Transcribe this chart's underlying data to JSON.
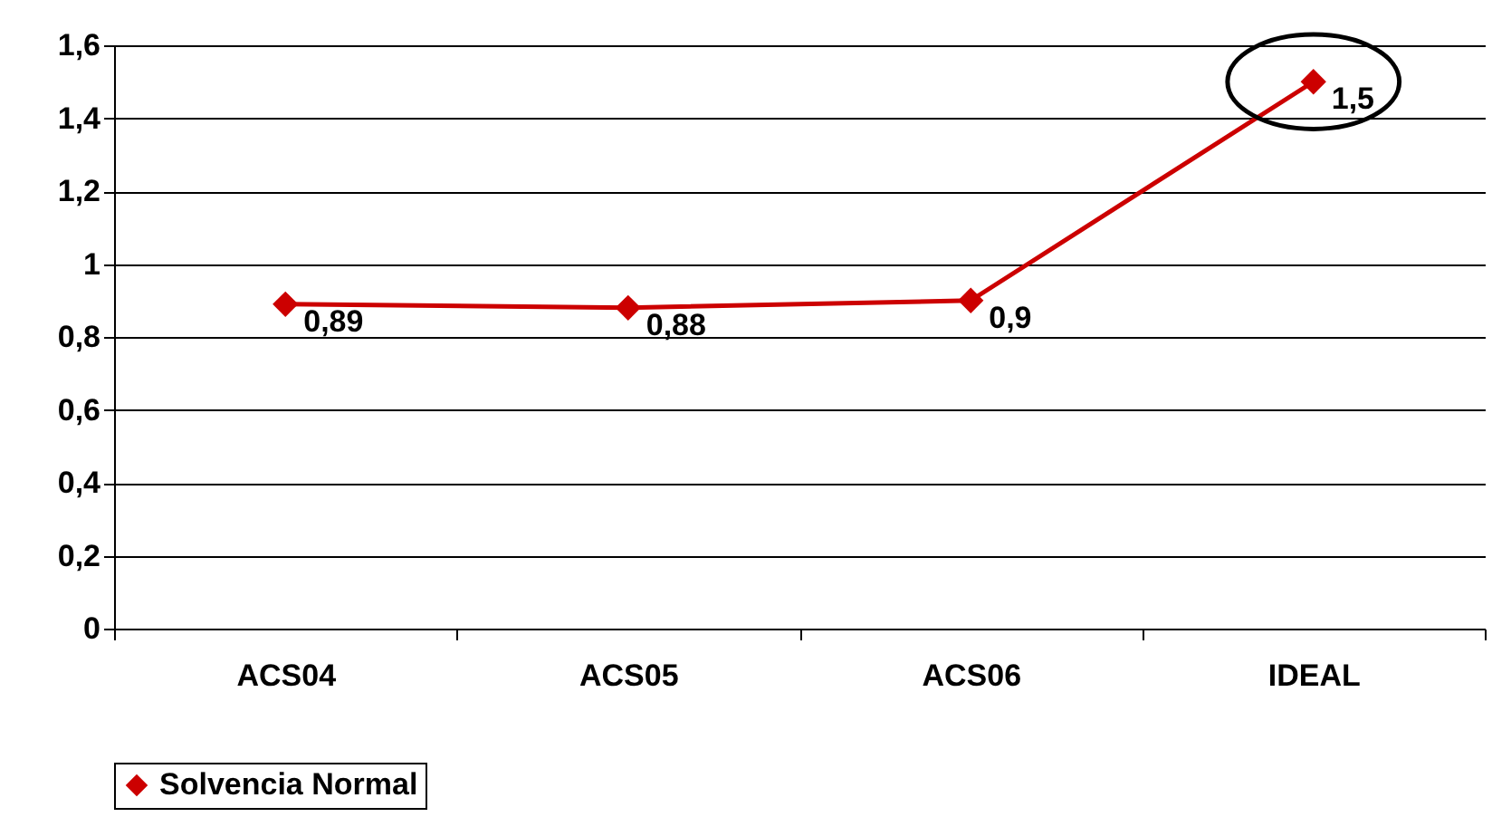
{
  "chart_data": {
    "type": "line",
    "categories": [
      "ACS04",
      "ACS05",
      "ACS06",
      "IDEAL"
    ],
    "series": [
      {
        "name": "Solvencia Normal",
        "color": "#cc0000",
        "values": [
          0.89,
          0.88,
          0.9,
          1.5
        ],
        "value_labels": [
          "0,89",
          "0,88",
          "0,9",
          "1,5"
        ]
      }
    ],
    "ylim": [
      0,
      1.6
    ],
    "yticks": [
      0,
      {
        "value": 0.2,
        "label": "0,2"
      },
      {
        "value": 0.4,
        "label": "0,4"
      },
      {
        "value": 0.6,
        "label": "0,6"
      },
      {
        "value": 0.8,
        "label": "0,8"
      },
      1,
      {
        "value": 1.2,
        "label": "1,2"
      },
      {
        "value": 1.4,
        "label": "1,4"
      },
      {
        "value": 1.6,
        "label": "1,6"
      }
    ],
    "grid": "y",
    "legend": "bottom",
    "marker": "diamond",
    "line_style": "solid"
  }
}
